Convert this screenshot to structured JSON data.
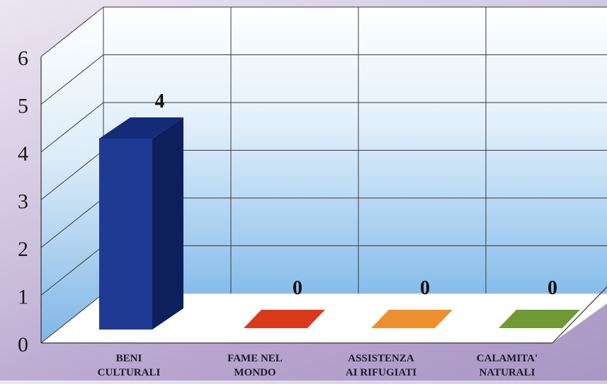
{
  "chart_data": {
    "type": "bar",
    "categories": [
      [
        "BENI",
        "CULTURALI"
      ],
      [
        "FAME NEL",
        "MONDO"
      ],
      [
        "ASSISTENZA",
        "AI RIFUGIATI"
      ],
      [
        "CALAMITA'",
        "NATURALI"
      ]
    ],
    "values": [
      4,
      0,
      0,
      0
    ],
    "data_labels": [
      "4",
      "0",
      "0",
      "0"
    ],
    "y_ticks": [
      "0",
      "1",
      "2",
      "3",
      "4",
      "5",
      "6"
    ],
    "ylim": [
      0,
      6
    ],
    "grid": true,
    "style": "3d-column",
    "colors": {
      "bars": [
        "#1f3a93",
        "#d93a1c",
        "#ee8f2e",
        "#6d9a32"
      ],
      "bar_dark": "#0e1f5e",
      "wall_top": "#ffffff",
      "wall_bottom": "#8ec4ee",
      "grid": "#3a3a3a"
    }
  }
}
